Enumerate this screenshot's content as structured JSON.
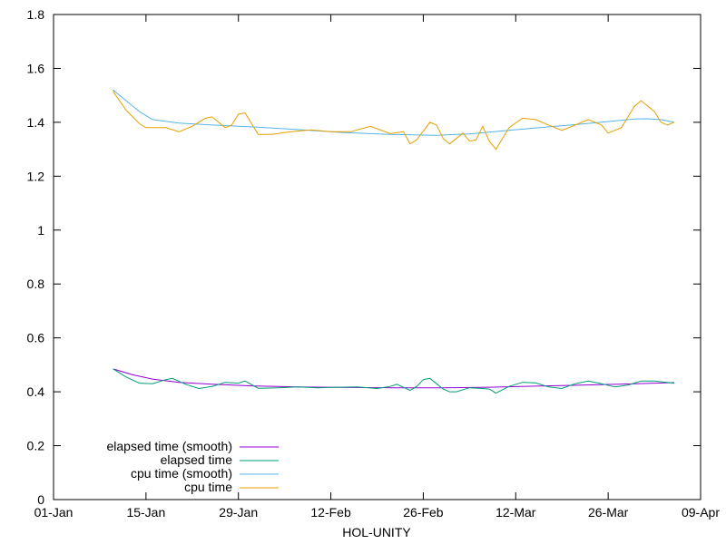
{
  "chart_data": {
    "type": "line",
    "xlabel": "HOL-UNITY",
    "ylabel": "",
    "title": "",
    "xlim": [
      "2014-01-01",
      "2014-04-09"
    ],
    "ylim": [
      0,
      1.8
    ],
    "x_ticks": [
      {
        "date": "2014-01-01",
        "label": "01-Jan"
      },
      {
        "date": "2014-01-15",
        "label": "15-Jan"
      },
      {
        "date": "2014-01-29",
        "label": "29-Jan"
      },
      {
        "date": "2014-02-12",
        "label": "12-Feb"
      },
      {
        "date": "2014-02-26",
        "label": "26-Feb"
      },
      {
        "date": "2014-03-12",
        "label": "12-Mar"
      },
      {
        "date": "2014-03-26",
        "label": "26-Mar"
      },
      {
        "date": "2014-04-09",
        "label": "09-Apr"
      }
    ],
    "y_ticks": [
      {
        "value": 0,
        "label": "0"
      },
      {
        "value": 0.2,
        "label": "0.2"
      },
      {
        "value": 0.4,
        "label": "0.4"
      },
      {
        "value": 0.6,
        "label": "0.6"
      },
      {
        "value": 0.8,
        "label": "0.8"
      },
      {
        "value": 1,
        "label": "1"
      },
      {
        "value": 1.2,
        "label": "1.2"
      },
      {
        "value": 1.4,
        "label": "1.4"
      },
      {
        "value": 1.6,
        "label": "1.6"
      },
      {
        "value": 1.8,
        "label": "1.8"
      }
    ],
    "grid": false,
    "legend_position": "bottom-left",
    "series": [
      {
        "name": "elapsed time (smooth)",
        "color": "#9400d3",
        "points": [
          [
            "2014-01-10",
            0.485
          ],
          [
            "2014-01-13",
            0.463
          ],
          [
            "2014-01-16",
            0.447
          ],
          [
            "2014-01-20",
            0.435
          ],
          [
            "2014-01-25",
            0.428
          ],
          [
            "2014-01-31",
            0.422
          ],
          [
            "2014-02-07",
            0.418
          ],
          [
            "2014-02-15",
            0.416
          ],
          [
            "2014-02-22",
            0.415
          ],
          [
            "2014-03-01",
            0.415
          ],
          [
            "2014-03-08",
            0.417
          ],
          [
            "2014-03-15",
            0.421
          ],
          [
            "2014-03-22",
            0.425
          ],
          [
            "2014-03-29",
            0.429
          ],
          [
            "2014-04-05",
            0.434
          ]
        ]
      },
      {
        "name": "elapsed time",
        "color": "#009e73",
        "points": [
          [
            "2014-01-10",
            0.485
          ],
          [
            "2014-01-12",
            0.455
          ],
          [
            "2014-01-14",
            0.432
          ],
          [
            "2014-01-16",
            0.43
          ],
          [
            "2014-01-18",
            0.445
          ],
          [
            "2014-01-19",
            0.45
          ],
          [
            "2014-01-21",
            0.428
          ],
          [
            "2014-01-23",
            0.412
          ],
          [
            "2014-01-25",
            0.42
          ],
          [
            "2014-01-27",
            0.435
          ],
          [
            "2014-01-29",
            0.432
          ],
          [
            "2014-01-30",
            0.44
          ],
          [
            "2014-02-01",
            0.413
          ],
          [
            "2014-02-04",
            0.415
          ],
          [
            "2014-02-07",
            0.418
          ],
          [
            "2014-02-10",
            0.415
          ],
          [
            "2014-02-13",
            0.417
          ],
          [
            "2014-02-16",
            0.418
          ],
          [
            "2014-02-19",
            0.412
          ],
          [
            "2014-02-21",
            0.42
          ],
          [
            "2014-02-22",
            0.428
          ],
          [
            "2014-02-24",
            0.405
          ],
          [
            "2014-02-25",
            0.42
          ],
          [
            "2014-02-26",
            0.445
          ],
          [
            "2014-02-27",
            0.45
          ],
          [
            "2014-02-28",
            0.43
          ],
          [
            "2014-03-01",
            0.41
          ],
          [
            "2014-03-02",
            0.4
          ],
          [
            "2014-03-03",
            0.4
          ],
          [
            "2014-03-05",
            0.415
          ],
          [
            "2014-03-07",
            0.412
          ],
          [
            "2014-03-08",
            0.41
          ],
          [
            "2014-03-09",
            0.395
          ],
          [
            "2014-03-11",
            0.42
          ],
          [
            "2014-03-13",
            0.435
          ],
          [
            "2014-03-15",
            0.433
          ],
          [
            "2014-03-17",
            0.418
          ],
          [
            "2014-03-19",
            0.412
          ],
          [
            "2014-03-21",
            0.43
          ],
          [
            "2014-03-23",
            0.44
          ],
          [
            "2014-03-25",
            0.43
          ],
          [
            "2014-03-27",
            0.418
          ],
          [
            "2014-03-29",
            0.425
          ],
          [
            "2014-03-31",
            0.44
          ],
          [
            "2014-04-02",
            0.44
          ],
          [
            "2014-04-05",
            0.432
          ]
        ]
      },
      {
        "name": "cpu time (smooth)",
        "color": "#56b4e9",
        "points": [
          [
            "2014-01-10",
            1.52
          ],
          [
            "2014-01-12",
            1.48
          ],
          [
            "2014-01-14",
            1.44
          ],
          [
            "2014-01-16",
            1.41
          ],
          [
            "2014-01-20",
            1.397
          ],
          [
            "2014-01-25",
            1.39
          ],
          [
            "2014-01-31",
            1.383
          ],
          [
            "2014-02-07",
            1.373
          ],
          [
            "2014-02-14",
            1.362
          ],
          [
            "2014-02-21",
            1.355
          ],
          [
            "2014-02-28",
            1.352
          ],
          [
            "2014-03-05",
            1.357
          ],
          [
            "2014-03-10",
            1.368
          ],
          [
            "2014-03-17",
            1.383
          ],
          [
            "2014-03-24",
            1.398
          ],
          [
            "2014-03-30",
            1.412
          ],
          [
            "2014-04-01",
            1.413
          ],
          [
            "2014-04-03",
            1.41
          ],
          [
            "2014-04-05",
            1.4
          ]
        ]
      },
      {
        "name": "cpu time",
        "color": "#e69f00",
        "points": [
          [
            "2014-01-10",
            1.515
          ],
          [
            "2014-01-12",
            1.445
          ],
          [
            "2014-01-14",
            1.395
          ],
          [
            "2014-01-15",
            1.38
          ],
          [
            "2014-01-18",
            1.38
          ],
          [
            "2014-01-20",
            1.365
          ],
          [
            "2014-01-22",
            1.385
          ],
          [
            "2014-01-24",
            1.415
          ],
          [
            "2014-01-25",
            1.42
          ],
          [
            "2014-01-27",
            1.38
          ],
          [
            "2014-01-28",
            1.39
          ],
          [
            "2014-01-29",
            1.43
          ],
          [
            "2014-01-30",
            1.435
          ],
          [
            "2014-02-01",
            1.355
          ],
          [
            "2014-02-03",
            1.355
          ],
          [
            "2014-02-06",
            1.365
          ],
          [
            "2014-02-09",
            1.372
          ],
          [
            "2014-02-12",
            1.365
          ],
          [
            "2014-02-15",
            1.365
          ],
          [
            "2014-02-18",
            1.385
          ],
          [
            "2014-02-21",
            1.358
          ],
          [
            "2014-02-23",
            1.365
          ],
          [
            "2014-02-24",
            1.32
          ],
          [
            "2014-02-25",
            1.335
          ],
          [
            "2014-02-27",
            1.4
          ],
          [
            "2014-02-28",
            1.39
          ],
          [
            "2014-03-01",
            1.34
          ],
          [
            "2014-03-02",
            1.32
          ],
          [
            "2014-03-04",
            1.36
          ],
          [
            "2014-03-05",
            1.33
          ],
          [
            "2014-03-06",
            1.335
          ],
          [
            "2014-03-07",
            1.385
          ],
          [
            "2014-03-08",
            1.33
          ],
          [
            "2014-03-09",
            1.3
          ],
          [
            "2014-03-11",
            1.38
          ],
          [
            "2014-03-13",
            1.415
          ],
          [
            "2014-03-15",
            1.41
          ],
          [
            "2014-03-17",
            1.39
          ],
          [
            "2014-03-19",
            1.37
          ],
          [
            "2014-03-21",
            1.39
          ],
          [
            "2014-03-23",
            1.41
          ],
          [
            "2014-03-25",
            1.39
          ],
          [
            "2014-03-26",
            1.36
          ],
          [
            "2014-03-28",
            1.38
          ],
          [
            "2014-03-30",
            1.46
          ],
          [
            "2014-03-31",
            1.48
          ],
          [
            "2014-04-02",
            1.44
          ],
          [
            "2014-04-03",
            1.4
          ],
          [
            "2014-04-04",
            1.39
          ],
          [
            "2014-04-05",
            1.4
          ]
        ]
      }
    ]
  }
}
